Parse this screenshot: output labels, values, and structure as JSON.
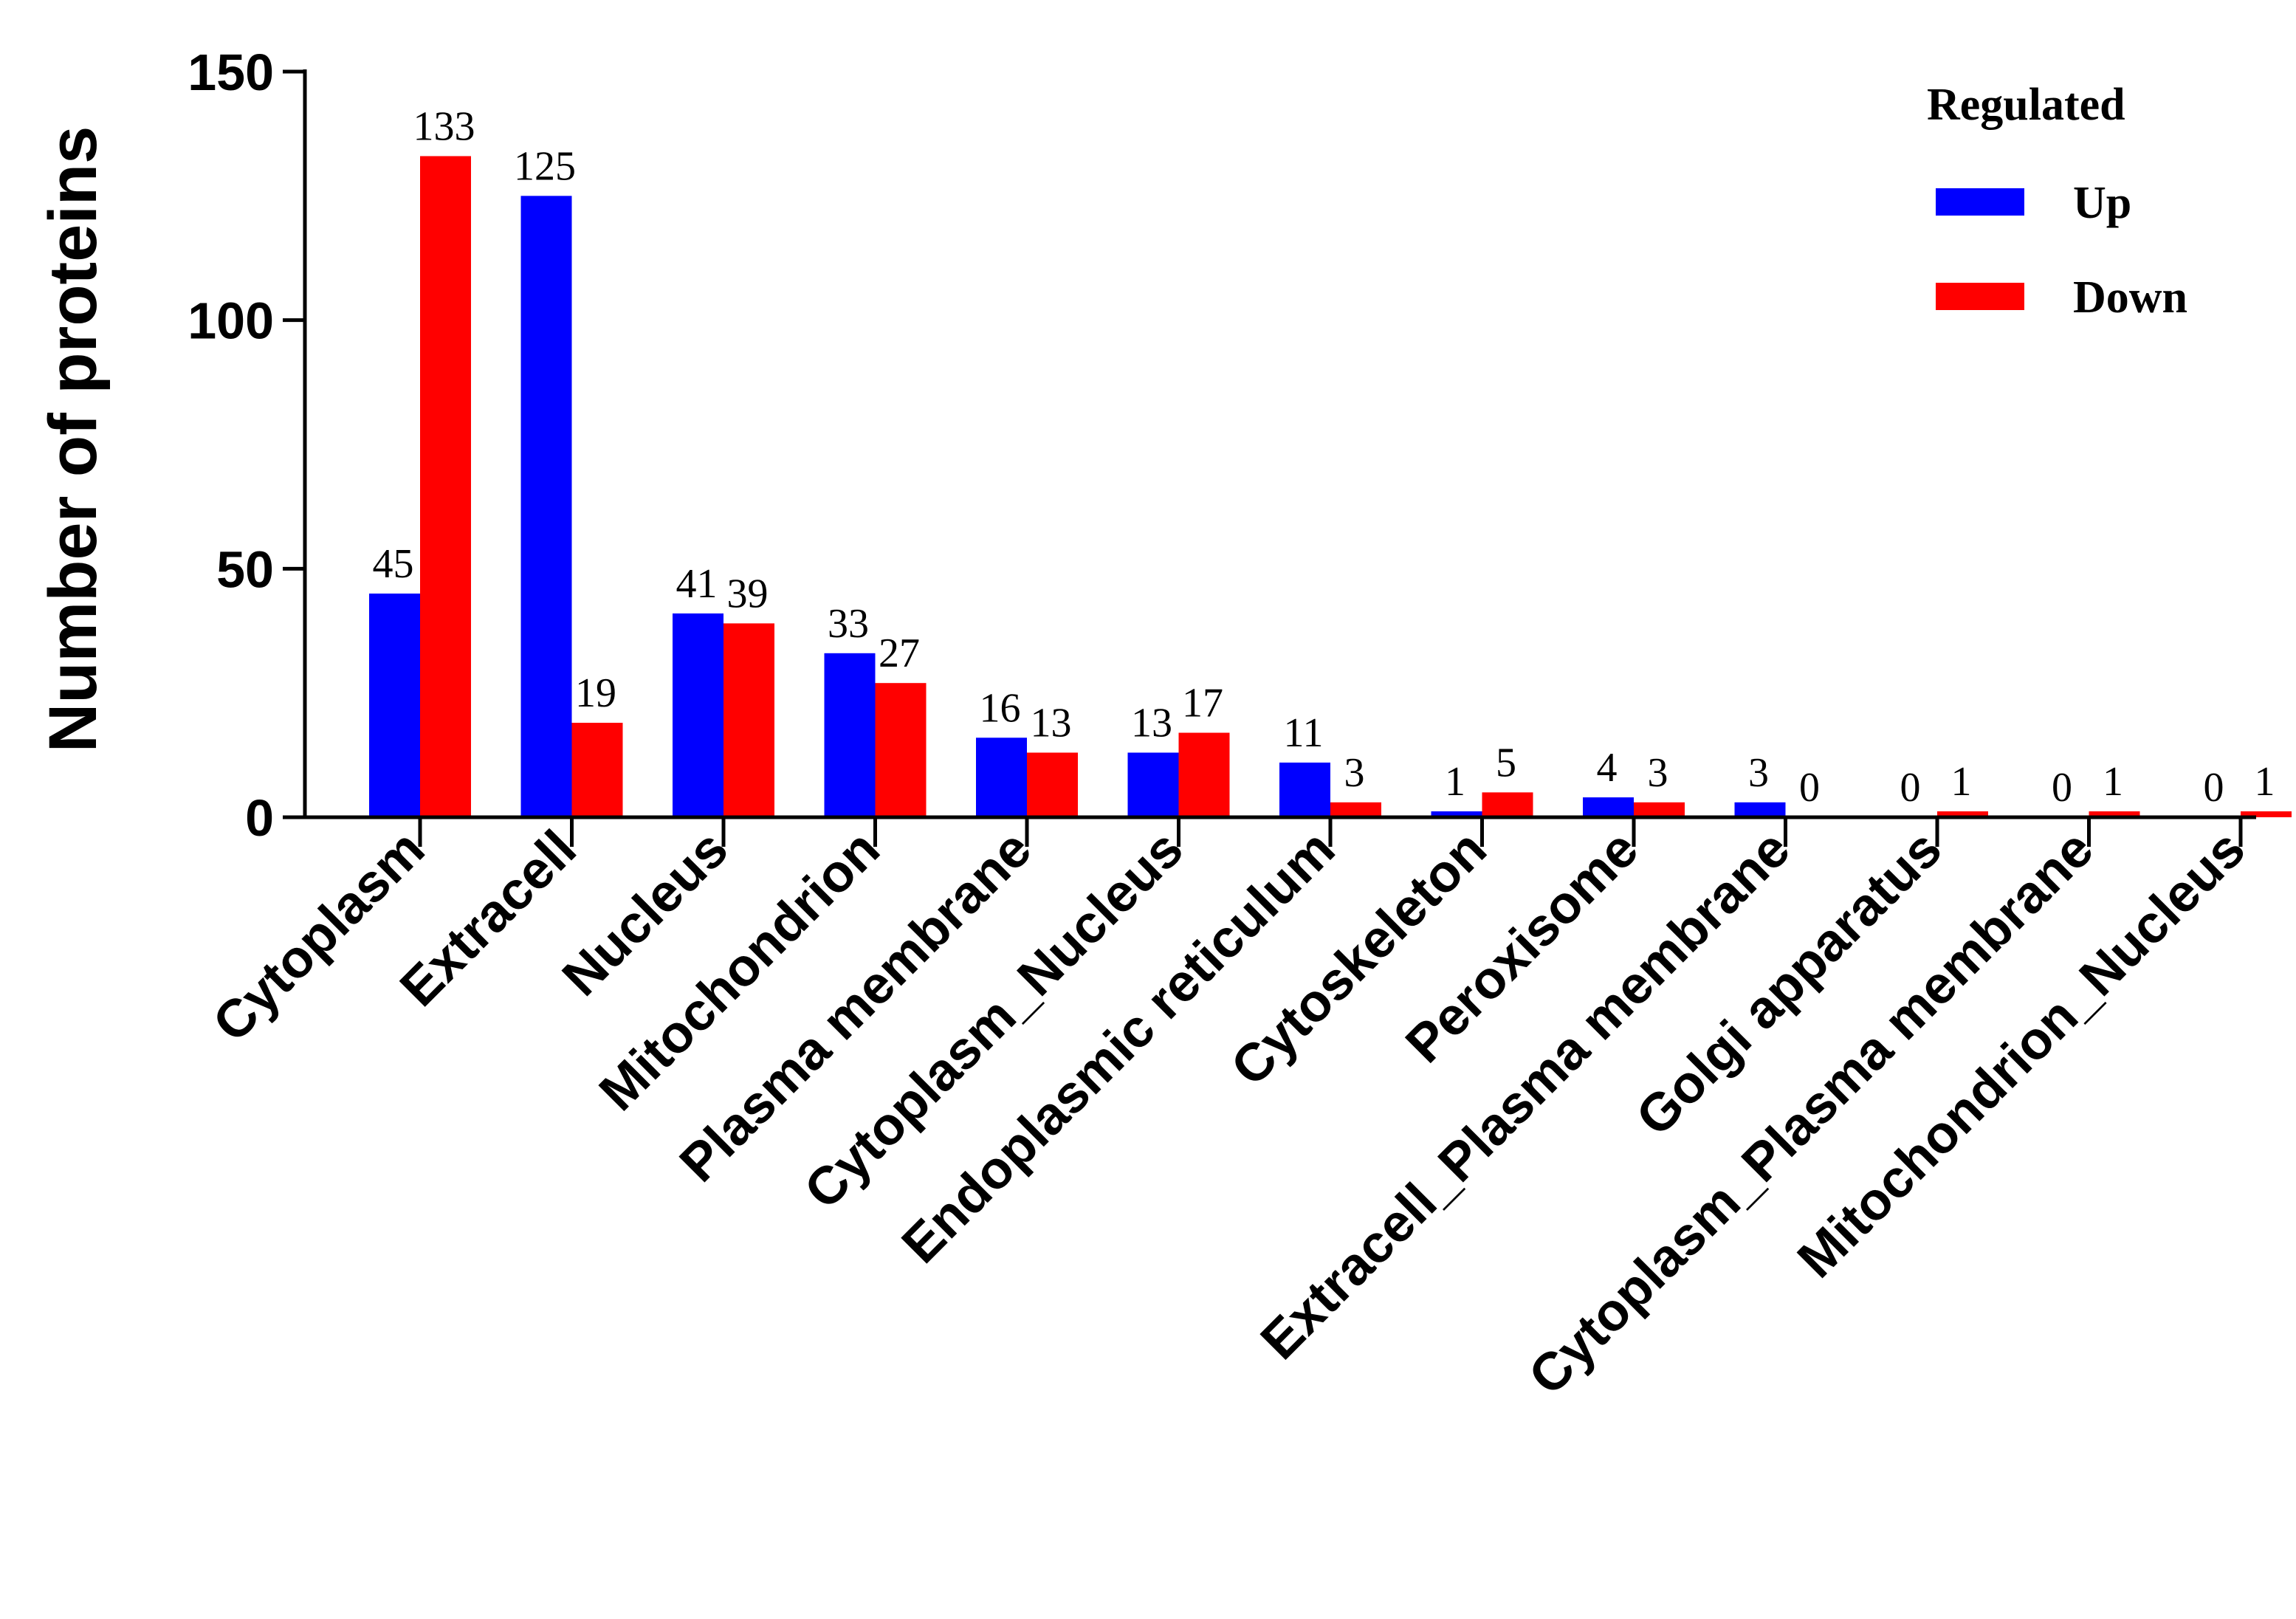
{
  "chart_data": {
    "type": "bar",
    "title": "",
    "xlabel": "",
    "ylabel": "Number of proteins",
    "ylim": [
      0,
      150
    ],
    "yticks": [
      0,
      50,
      100,
      150
    ],
    "categories": [
      "Cytoplasm",
      "Extracell",
      "Nucleus",
      "Mitochondrion",
      "Plasma membrane",
      "Cytoplasm_Nucleus",
      "Endoplasmic reticulum",
      "Cytoskeleton",
      "Peroxisome",
      "Extracell_Plasma membrane",
      "Golgi apparatus",
      "Cytoplasm_Plasma membrane",
      "Mitochondrion_Nucleus"
    ],
    "series": [
      {
        "name": "Up",
        "color": "#0000ff",
        "values": [
          45,
          125,
          41,
          33,
          16,
          13,
          11,
          1,
          4,
          3,
          0,
          0,
          0
        ]
      },
      {
        "name": "Down",
        "color": "#ff0000",
        "values": [
          133,
          19,
          39,
          27,
          13,
          17,
          3,
          5,
          3,
          0,
          1,
          1,
          1
        ]
      }
    ],
    "legend": {
      "title": "Regulated",
      "position": "top-right"
    },
    "grid": false
  }
}
